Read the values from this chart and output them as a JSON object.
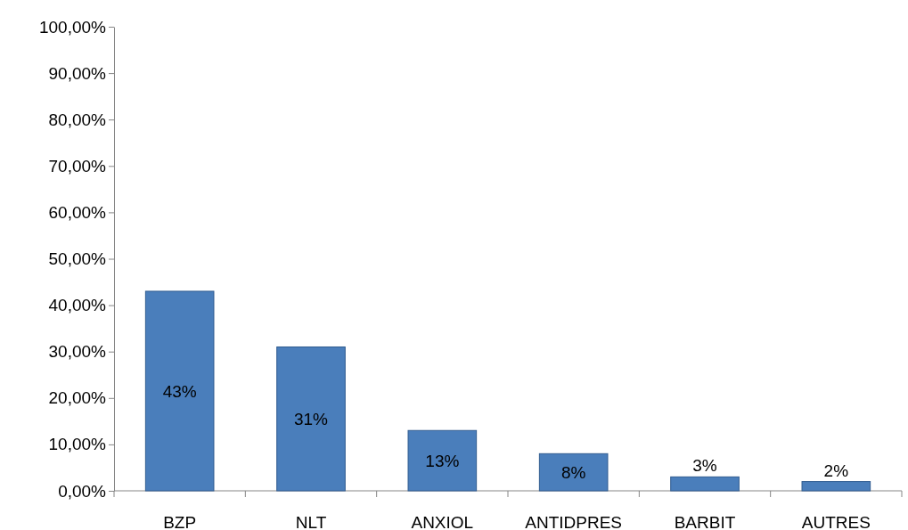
{
  "chart_data": {
    "type": "bar",
    "categories": [
      "BZP",
      "NLT",
      "ANXIOL",
      "ANTIDPRES",
      "BARBIT",
      "AUTRES"
    ],
    "values": [
      43,
      31,
      13,
      8,
      3,
      2
    ],
    "value_labels": [
      "43%",
      "31%",
      "13%",
      "8%",
      "3%",
      "2%"
    ],
    "color": "#4a7ebb",
    "ylim": [
      0,
      100
    ],
    "yticks": [
      {
        "value": 0,
        "label": "0,00%"
      },
      {
        "value": 10,
        "label": "10,00%"
      },
      {
        "value": 20,
        "label": "20,00%"
      },
      {
        "value": 30,
        "label": "30,00%"
      },
      {
        "value": 40,
        "label": "40,00%"
      },
      {
        "value": 50,
        "label": "50,00%"
      },
      {
        "value": 60,
        "label": "60,00%"
      },
      {
        "value": 70,
        "label": "70,00%"
      },
      {
        "value": 80,
        "label": "80,00%"
      },
      {
        "value": 90,
        "label": "90,00%"
      },
      {
        "value": 100,
        "label": "100,00%"
      }
    ],
    "grid": false
  }
}
